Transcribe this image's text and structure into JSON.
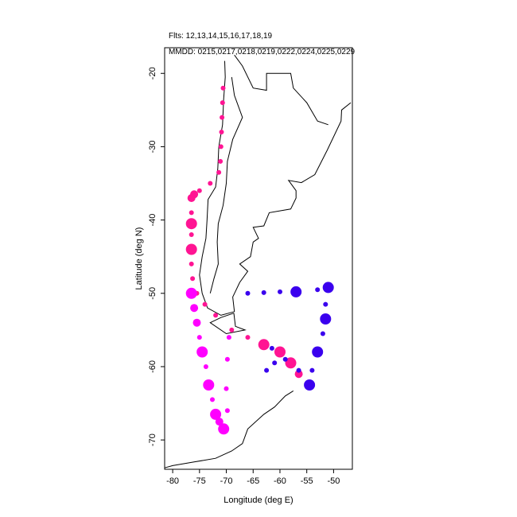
{
  "header": {
    "flights": "Flts: 12,13,14,15,16,17,18,19",
    "dates": "MMDD: 0215,0217,0218,0219,0222,0224,0225,0229"
  },
  "chart_data": {
    "type": "scatter",
    "title": "",
    "xlabel": "Longitude (deg E)",
    "ylabel": "Latitude (deg N)",
    "xlim": [
      -81.5,
      -46.5
    ],
    "ylim": [
      -74,
      -16.5
    ],
    "xticks": [
      -80,
      -75,
      -70,
      -65,
      -60,
      -55,
      -50
    ],
    "yticks": [
      -20,
      -30,
      -40,
      -50,
      -60,
      -70
    ],
    "grid": false,
    "legend": "none",
    "colors": {
      "pink": "#ff1493",
      "magenta": "#ff00ff",
      "blue": "#3a00ee",
      "coast": "#000000"
    },
    "series": [
      {
        "color": "pink",
        "points": [
          [
            -70.6,
            -22.0
          ],
          [
            -70.7,
            -24.0
          ],
          [
            -70.8,
            -26.0
          ],
          [
            -70.9,
            -28.0
          ],
          [
            -71.0,
            -30.0
          ],
          [
            -71.1,
            -32.0
          ],
          [
            -71.4,
            -33.5
          ],
          [
            -73.0,
            -35.0
          ],
          [
            -75.0,
            -36.0
          ],
          [
            -76.0,
            -36.5
          ],
          [
            -76.5,
            -37.0
          ],
          [
            -76.5,
            -39.0
          ],
          [
            -76.5,
            -40.5
          ],
          [
            -76.5,
            -42.0
          ],
          [
            -76.5,
            -44.0
          ],
          [
            -76.5,
            -46.0
          ],
          [
            -76.3,
            -48.0
          ],
          [
            -75.5,
            -50.0
          ],
          [
            -74.0,
            -51.5
          ],
          [
            -72.0,
            -53.0
          ],
          [
            -69.0,
            -55.0
          ],
          [
            -66.0,
            -56.0
          ],
          [
            -63.0,
            -57.0
          ],
          [
            -60.0,
            -58.0
          ],
          [
            -58.0,
            -59.5
          ],
          [
            -56.5,
            -61.0
          ]
        ],
        "sizes": [
          1,
          1,
          1,
          1,
          1,
          1,
          1,
          1,
          1,
          2,
          2,
          1,
          3,
          1,
          3,
          1,
          1,
          1,
          1,
          1,
          1,
          1,
          3,
          3,
          3,
          2
        ]
      },
      {
        "color": "magenta",
        "points": [
          [
            -76.5,
            -50.0
          ],
          [
            -76.0,
            -52.0
          ],
          [
            -75.5,
            -54.0
          ],
          [
            -75.0,
            -56.0
          ],
          [
            -74.5,
            -58.0
          ],
          [
            -73.8,
            -60.0
          ],
          [
            -73.3,
            -62.5
          ],
          [
            -72.6,
            -64.5
          ],
          [
            -72.0,
            -66.5
          ],
          [
            -71.3,
            -67.5
          ],
          [
            -70.5,
            -68.5
          ],
          [
            -69.8,
            -66.0
          ],
          [
            -70.0,
            -63.0
          ],
          [
            -69.8,
            -59.0
          ],
          [
            -69.5,
            -56.0
          ]
        ],
        "sizes": [
          3,
          2,
          2,
          1,
          3,
          1,
          3,
          1,
          3,
          2,
          3,
          1,
          1,
          1,
          1
        ]
      },
      {
        "color": "blue",
        "points": [
          [
            -66.0,
            -50.0
          ],
          [
            -63.0,
            -49.9
          ],
          [
            -60.0,
            -49.8
          ],
          [
            -57.0,
            -49.8
          ],
          [
            -53.0,
            -49.5
          ],
          [
            -51.0,
            -49.2
          ],
          [
            -51.5,
            -51.5
          ],
          [
            -51.5,
            -53.5
          ],
          [
            -52.0,
            -55.5
          ],
          [
            -53.0,
            -58.0
          ],
          [
            -54.0,
            -60.5
          ],
          [
            -54.5,
            -62.5
          ],
          [
            -56.5,
            -60.5
          ],
          [
            -59.0,
            -59.0
          ],
          [
            -61.0,
            -59.5
          ],
          [
            -62.5,
            -60.5
          ],
          [
            -61.5,
            -57.5
          ]
        ],
        "sizes": [
          1,
          1,
          1,
          3,
          1,
          3,
          1,
          3,
          1,
          3,
          1,
          3,
          1,
          1,
          1,
          1,
          1
        ]
      }
    ]
  }
}
